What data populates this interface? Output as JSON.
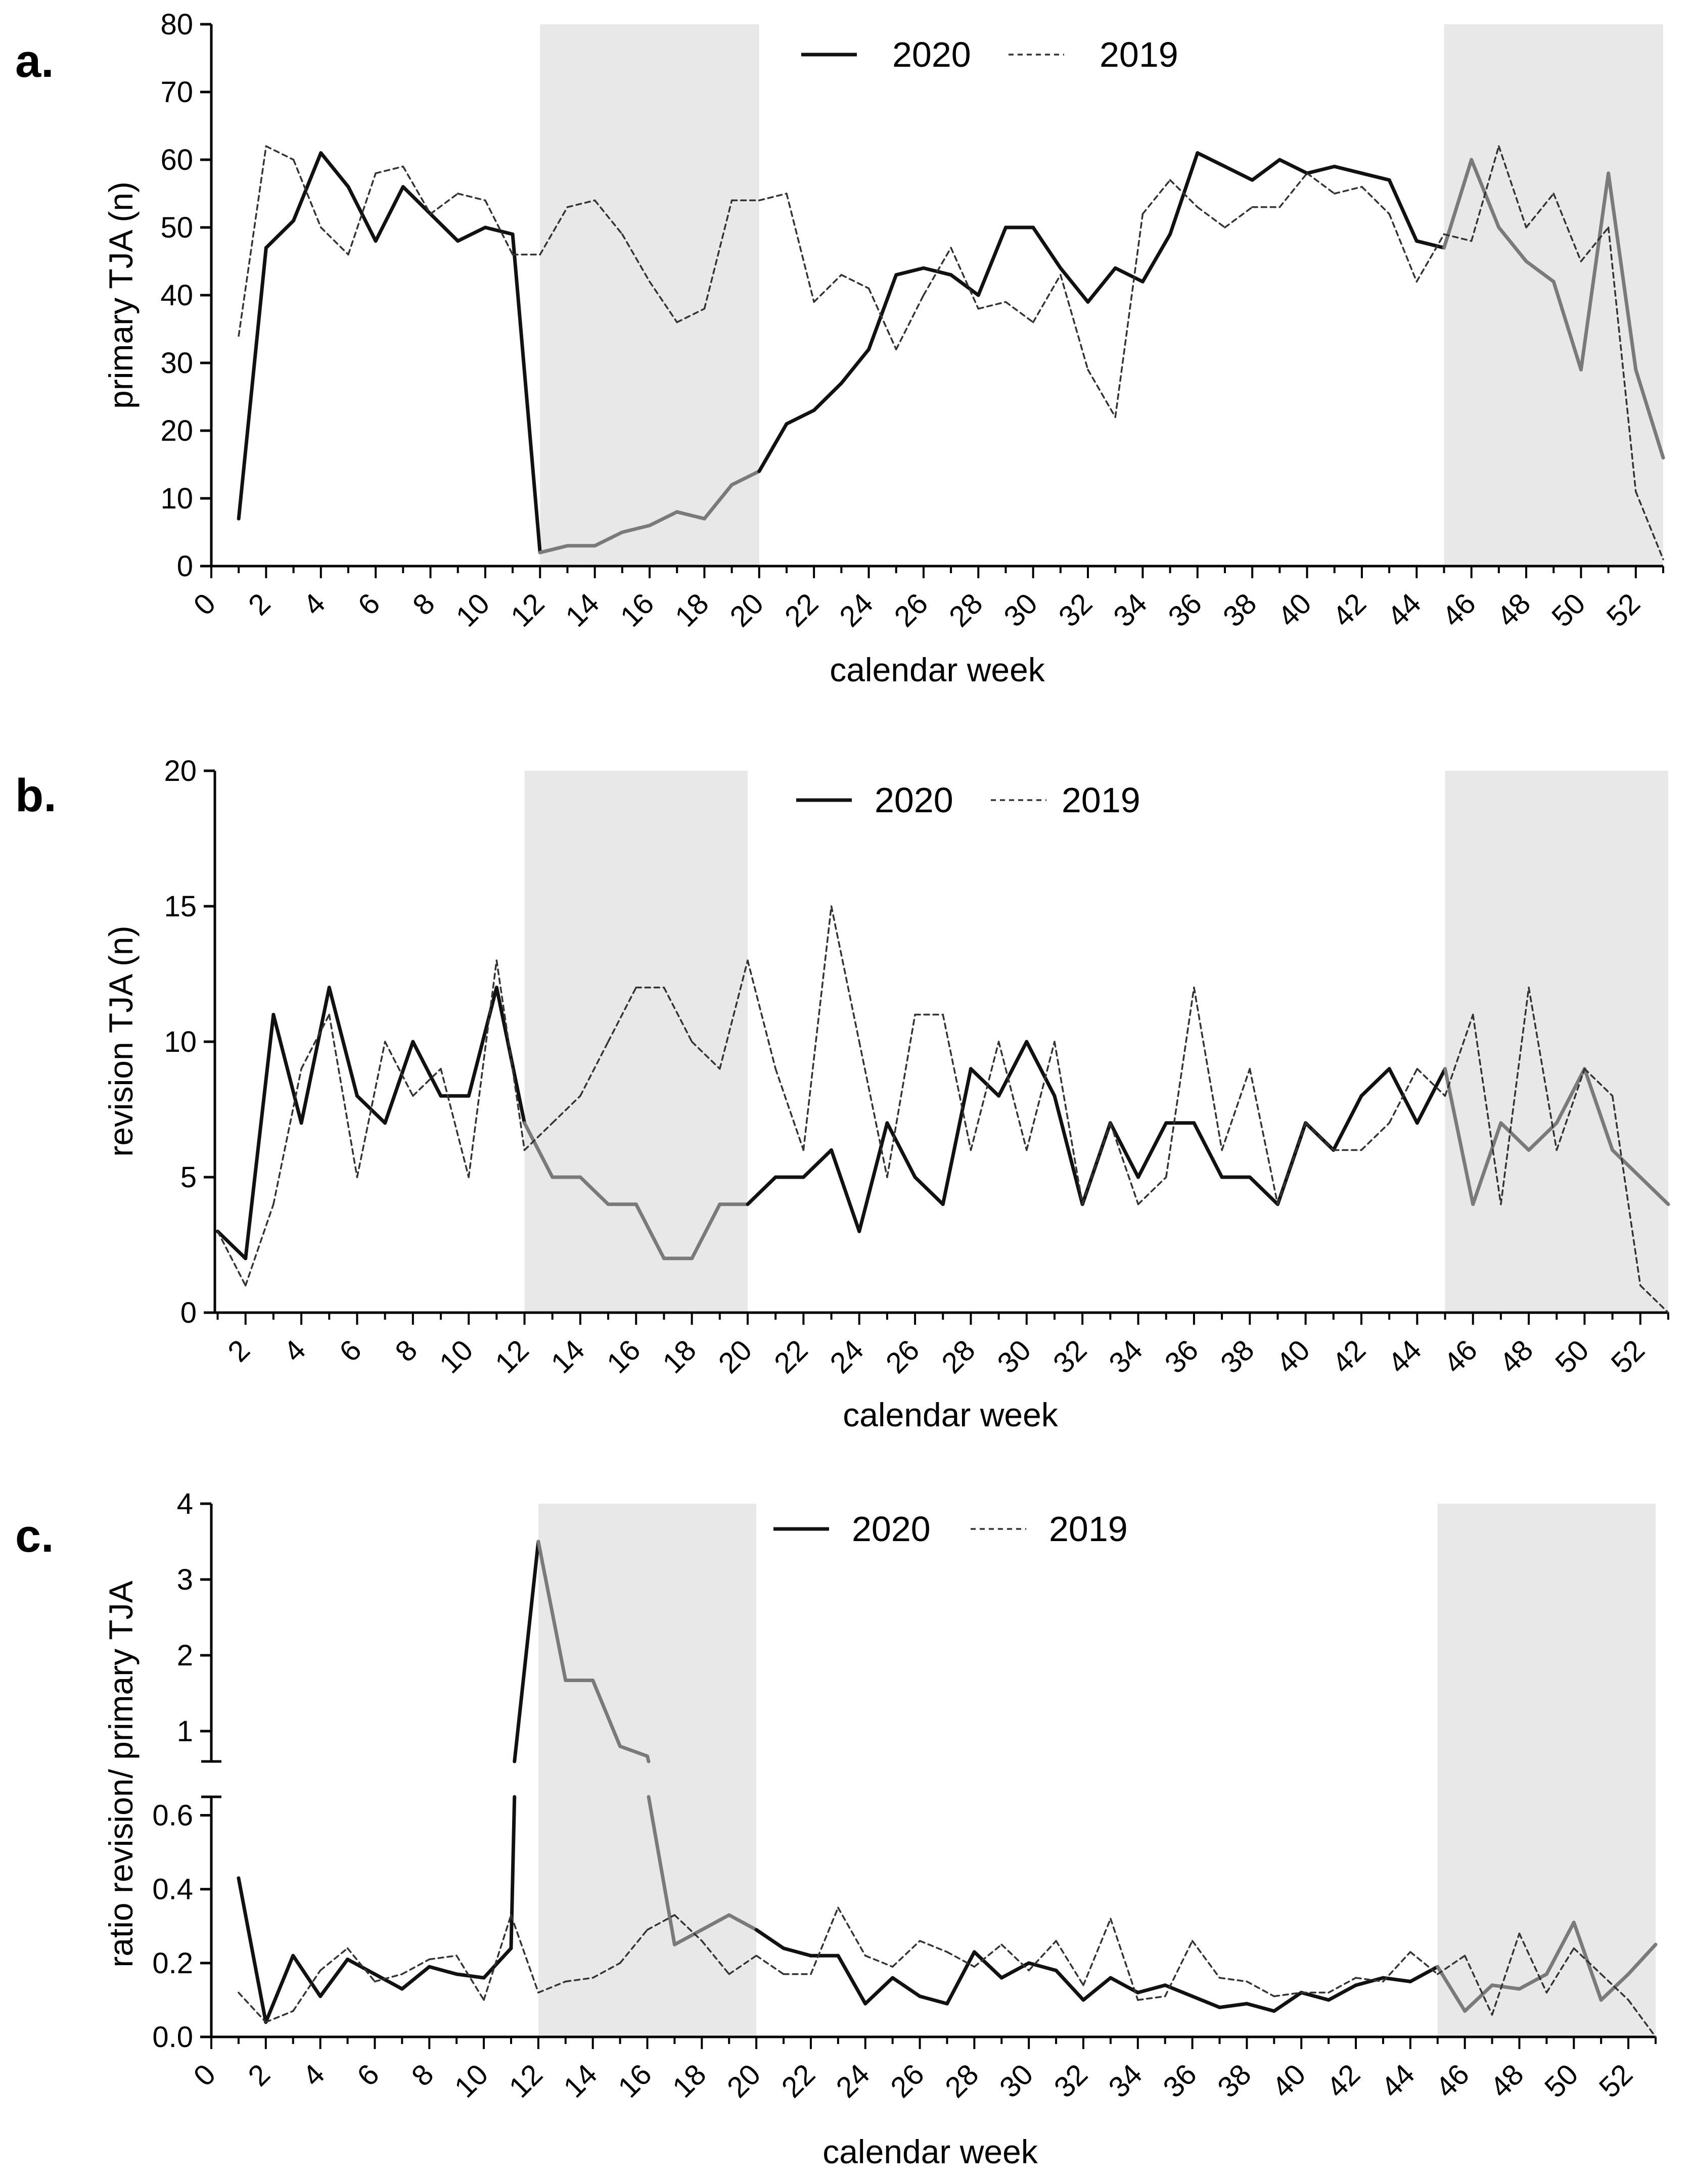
{
  "chart_data": [
    {
      "type": "line",
      "panel_label": "a.",
      "xlabel": "calendar week",
      "ylabel": "primary TJA (n)",
      "xlim": [
        0,
        53
      ],
      "ylim": [
        0,
        80
      ],
      "x_ticks": [
        0,
        2,
        4,
        6,
        8,
        10,
        12,
        14,
        16,
        18,
        20,
        22,
        24,
        26,
        28,
        30,
        32,
        34,
        36,
        38,
        40,
        42,
        44,
        46,
        48,
        50,
        52
      ],
      "y_ticks": [
        0,
        10,
        20,
        30,
        40,
        50,
        60,
        70,
        80
      ],
      "shaded_ranges": [
        [
          12,
          20
        ],
        [
          45,
          53
        ]
      ],
      "legend_position": "top-center",
      "series": [
        {
          "name": "2020",
          "style": "solid",
          "x": [
            1,
            2,
            3,
            4,
            5,
            6,
            7,
            8,
            9,
            10,
            11,
            12,
            13,
            14,
            15,
            16,
            17,
            18,
            19,
            20,
            21,
            22,
            23,
            24,
            25,
            26,
            27,
            28,
            29,
            30,
            31,
            32,
            33,
            34,
            35,
            36,
            37,
            38,
            39,
            40,
            41,
            42,
            43,
            44,
            45,
            46,
            47,
            48,
            49,
            50,
            51,
            52,
            53
          ],
          "values": [
            7,
            47,
            51,
            61,
            56,
            48,
            56,
            52,
            48,
            50,
            49,
            2,
            3,
            3,
            5,
            6,
            8,
            7,
            12,
            14,
            21,
            23,
            27,
            32,
            43,
            44,
            43,
            40,
            50,
            50,
            44,
            39,
            44,
            42,
            49,
            61,
            59,
            57,
            60,
            58,
            59,
            58,
            57,
            48,
            47,
            60,
            50,
            45,
            42,
            29,
            58,
            29,
            16
          ]
        },
        {
          "name": "2019",
          "style": "dashed",
          "x": [
            1,
            2,
            3,
            4,
            5,
            6,
            7,
            8,
            9,
            10,
            11,
            12,
            13,
            14,
            15,
            16,
            17,
            18,
            19,
            20,
            21,
            22,
            23,
            24,
            25,
            26,
            27,
            28,
            29,
            30,
            31,
            32,
            33,
            34,
            35,
            36,
            37,
            38,
            39,
            40,
            41,
            42,
            43,
            44,
            45,
            46,
            47,
            48,
            49,
            50,
            51,
            52,
            53
          ],
          "values": [
            34,
            62,
            60,
            50,
            46,
            58,
            59,
            52,
            55,
            54,
            46,
            46,
            53,
            54,
            49,
            42,
            36,
            38,
            54,
            54,
            55,
            39,
            43,
            41,
            32,
            40,
            47,
            38,
            39,
            36,
            43,
            29,
            22,
            52,
            57,
            53,
            50,
            53,
            53,
            58,
            55,
            56,
            52,
            42,
            49,
            48,
            62,
            50,
            55,
            45,
            50,
            11,
            1
          ]
        }
      ]
    },
    {
      "type": "line",
      "panel_label": "b.",
      "xlabel": "calendar week",
      "ylabel": "revision TJA (n)",
      "xlim": [
        0,
        53
      ],
      "ylim": [
        0,
        20
      ],
      "x_ticks": [
        2,
        4,
        6,
        8,
        10,
        12,
        14,
        16,
        18,
        20,
        22,
        24,
        26,
        28,
        30,
        32,
        34,
        36,
        38,
        40,
        42,
        44,
        46,
        48,
        50,
        52
      ],
      "y_ticks": [
        0,
        5,
        10,
        15,
        20
      ],
      "shaded_ranges": [
        [
          12,
          20
        ],
        [
          45,
          53
        ]
      ],
      "legend_position": "top-center",
      "series": [
        {
          "name": "2020",
          "style": "solid",
          "x": [
            1,
            2,
            3,
            4,
            5,
            6,
            7,
            8,
            9,
            10,
            11,
            12,
            13,
            14,
            15,
            16,
            17,
            18,
            19,
            20,
            21,
            22,
            23,
            24,
            25,
            26,
            27,
            28,
            29,
            30,
            31,
            32,
            33,
            34,
            35,
            36,
            37,
            38,
            39,
            40,
            41,
            42,
            43,
            44,
            45,
            46,
            47,
            48,
            49,
            50,
            51,
            52,
            53
          ],
          "values": [
            3,
            2,
            11,
            7,
            12,
            8,
            7,
            10,
            8,
            8,
            12,
            7,
            5,
            5,
            4,
            4,
            2,
            2,
            4,
            4,
            5,
            5,
            6,
            3,
            7,
            5,
            4,
            9,
            8,
            10,
            8,
            4,
            7,
            5,
            7,
            7,
            5,
            5,
            4,
            7,
            6,
            8,
            9,
            7,
            9,
            4,
            7,
            6,
            7,
            9,
            6,
            5,
            4
          ]
        },
        {
          "name": "2019",
          "style": "dashed",
          "x": [
            1,
            2,
            3,
            4,
            5,
            6,
            7,
            8,
            9,
            10,
            11,
            12,
            13,
            14,
            15,
            16,
            17,
            18,
            19,
            20,
            21,
            22,
            23,
            24,
            25,
            26,
            27,
            28,
            29,
            30,
            31,
            32,
            33,
            34,
            35,
            36,
            37,
            38,
            39,
            40,
            41,
            42,
            43,
            44,
            45,
            46,
            47,
            48,
            49,
            50,
            51,
            52,
            53
          ],
          "values": [
            3,
            1,
            4,
            9,
            11,
            5,
            10,
            8,
            9,
            5,
            13,
            6,
            7,
            8,
            10,
            12,
            12,
            10,
            9,
            13,
            9,
            6,
            15,
            10,
            5,
            11,
            11,
            6,
            10,
            6,
            10,
            4,
            7,
            4,
            5,
            12,
            6,
            9,
            4,
            7,
            6,
            6,
            7,
            9,
            8,
            11,
            4,
            12,
            6,
            9,
            8,
            1,
            0
          ]
        }
      ]
    },
    {
      "type": "line",
      "panel_label": "c.",
      "xlabel": "calendar week",
      "ylabel": "ratio revision/ primary TJA",
      "xlim": [
        0,
        53
      ],
      "y_axis_break": {
        "lower_range": [
          0,
          0.65
        ],
        "upper_range": [
          0.6,
          4
        ]
      },
      "x_ticks": [
        0,
        2,
        4,
        6,
        8,
        10,
        12,
        14,
        16,
        18,
        20,
        22,
        24,
        26,
        28,
        30,
        32,
        34,
        36,
        38,
        40,
        42,
        44,
        46,
        48,
        50,
        52
      ],
      "y_ticks_lower": [
        "0.0",
        "0.2",
        "0.4",
        "0.6"
      ],
      "y_ticks_upper": [
        "1",
        "2",
        "3",
        "4"
      ],
      "shaded_ranges": [
        [
          12,
          20
        ],
        [
          45,
          53
        ]
      ],
      "legend_position": "top-center",
      "series": [
        {
          "name": "2020",
          "style": "solid",
          "x": [
            1,
            2,
            3,
            4,
            5,
            6,
            7,
            8,
            9,
            10,
            11,
            12,
            13,
            14,
            15,
            16,
            17,
            18,
            19,
            20,
            21,
            22,
            23,
            24,
            25,
            26,
            27,
            28,
            29,
            30,
            31,
            32,
            33,
            34,
            35,
            36,
            37,
            38,
            39,
            40,
            41,
            42,
            43,
            44,
            45,
            46,
            47,
            48,
            49,
            50,
            51,
            52,
            53
          ],
          "values": [
            0.43,
            0.04,
            0.22,
            0.11,
            0.21,
            0.17,
            0.13,
            0.19,
            0.17,
            0.16,
            0.24,
            3.5,
            1.67,
            1.67,
            0.8,
            0.67,
            0.25,
            0.29,
            0.33,
            0.29,
            0.24,
            0.22,
            0.22,
            0.09,
            0.16,
            0.11,
            0.09,
            0.23,
            0.16,
            0.2,
            0.18,
            0.1,
            0.16,
            0.12,
            0.14,
            0.11,
            0.08,
            0.09,
            0.07,
            0.12,
            0.1,
            0.14,
            0.16,
            0.15,
            0.19,
            0.07,
            0.14,
            0.13,
            0.17,
            0.31,
            0.1,
            0.17,
            0.25
          ]
        },
        {
          "name": "2019",
          "style": "dashed",
          "x": [
            1,
            2,
            3,
            4,
            5,
            6,
            7,
            8,
            9,
            10,
            11,
            12,
            13,
            14,
            15,
            16,
            17,
            18,
            19,
            20,
            21,
            22,
            23,
            24,
            25,
            26,
            27,
            28,
            29,
            30,
            31,
            32,
            33,
            34,
            35,
            36,
            37,
            38,
            39,
            40,
            41,
            42,
            43,
            44,
            45,
            46,
            47,
            48,
            49,
            50,
            51,
            52,
            53
          ],
          "values": [
            0.12,
            0.04,
            0.07,
            0.18,
            0.24,
            0.15,
            0.17,
            0.21,
            0.22,
            0.1,
            0.33,
            0.12,
            0.15,
            0.16,
            0.2,
            0.29,
            0.33,
            0.26,
            0.17,
            0.22,
            0.17,
            0.17,
            0.35,
            0.22,
            0.19,
            0.26,
            0.23,
            0.19,
            0.25,
            0.18,
            0.26,
            0.14,
            0.32,
            0.1,
            0.11,
            0.26,
            0.16,
            0.15,
            0.11,
            0.12,
            0.12,
            0.16,
            0.15,
            0.23,
            0.17,
            0.22,
            0.06,
            0.28,
            0.12,
            0.24,
            0.17,
            0.1,
            0
          ]
        }
      ]
    }
  ],
  "colors": {
    "shade": "#e8e8e8",
    "line_2020": "#111111",
    "line_2020_shaded": "#7a7a7a",
    "line_2019": "#333333"
  }
}
